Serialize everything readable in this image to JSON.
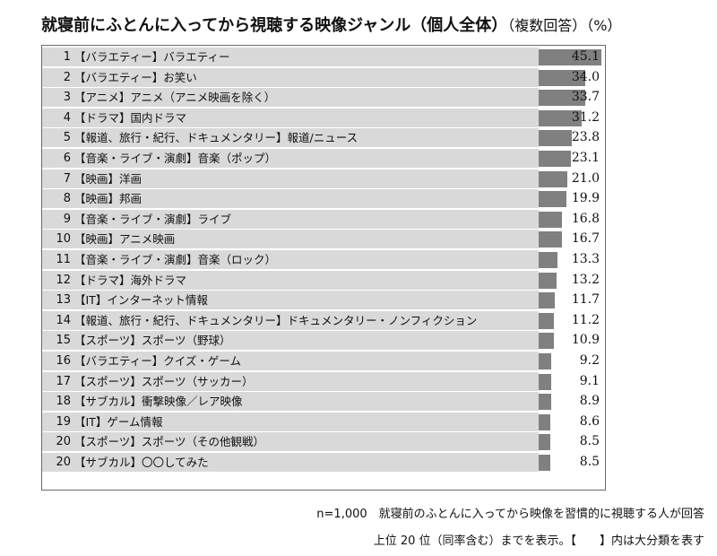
{
  "title": {
    "main": "就寝前にふとんに入ってから視聴する映像ジャンル（個人全体）",
    "sub": "（複数回答）（%）"
  },
  "chart_data": {
    "type": "bar",
    "orientation": "horizontal",
    "xlim": [
      0,
      48
    ],
    "categories": [
      "【バラエティー】バラエティー",
      "【バラエティー】お笑い",
      "【アニメ】アニメ（アニメ映画を除く）",
      "【ドラマ】国内ドラマ",
      "【報道、旅行・紀行、ドキュメンタリー】報道/ニュース",
      "【音楽・ライブ・演劇】音楽（ポップ）",
      "【映画】洋画",
      "【映画】邦画",
      "【音楽・ライブ・演劇】ライブ",
      "【映画】アニメ映画",
      "【音楽・ライブ・演劇】音楽（ロック）",
      "【ドラマ】海外ドラマ",
      "【IT】インターネット情報",
      "【報道、旅行・紀行、ドキュメンタリー】ドキュメンタリー・ノンフィクション",
      "【スポーツ】スポーツ（野球）",
      "【バラエティー】クイズ・ゲーム",
      "【スポーツ】スポーツ（サッカー）",
      "【サブカル】衝撃映像／レア映像",
      "【IT】ゲーム情報",
      "【スポーツ】スポーツ（その他観戦）",
      "【サブカル】〇〇してみた"
    ],
    "ranks": [
      "1",
      "2",
      "3",
      "4",
      "5",
      "6",
      "7",
      "8",
      "9",
      "10",
      "11",
      "12",
      "13",
      "14",
      "15",
      "16",
      "17",
      "18",
      "19",
      "20",
      "20"
    ],
    "values": [
      45.1,
      34.0,
      33.7,
      31.2,
      23.8,
      23.1,
      21.0,
      19.9,
      16.8,
      16.7,
      13.3,
      13.2,
      11.7,
      11.2,
      10.9,
      9.2,
      9.1,
      8.9,
      8.6,
      8.5,
      8.5
    ],
    "value_labels": [
      "45.1",
      "34.0",
      "33.7",
      "31.2",
      "23.8",
      "23.1",
      "21.0",
      "19.9",
      "16.8",
      "16.7",
      "13.3",
      "13.2",
      "11.7",
      "11.2",
      "10.9",
      "9.2",
      "9.1",
      "8.9",
      "8.6",
      "8.5",
      "8.5"
    ],
    "bar_color": "#808080",
    "row_color": "#d9d9d9"
  },
  "notes": {
    "line1": "n=1,000　就寝前のふとんに入ってから映像を習慣的に視聴する人が回答",
    "line2": "上位 20 位（同率含む）までを表示。【　　】内は大分類を表す"
  }
}
